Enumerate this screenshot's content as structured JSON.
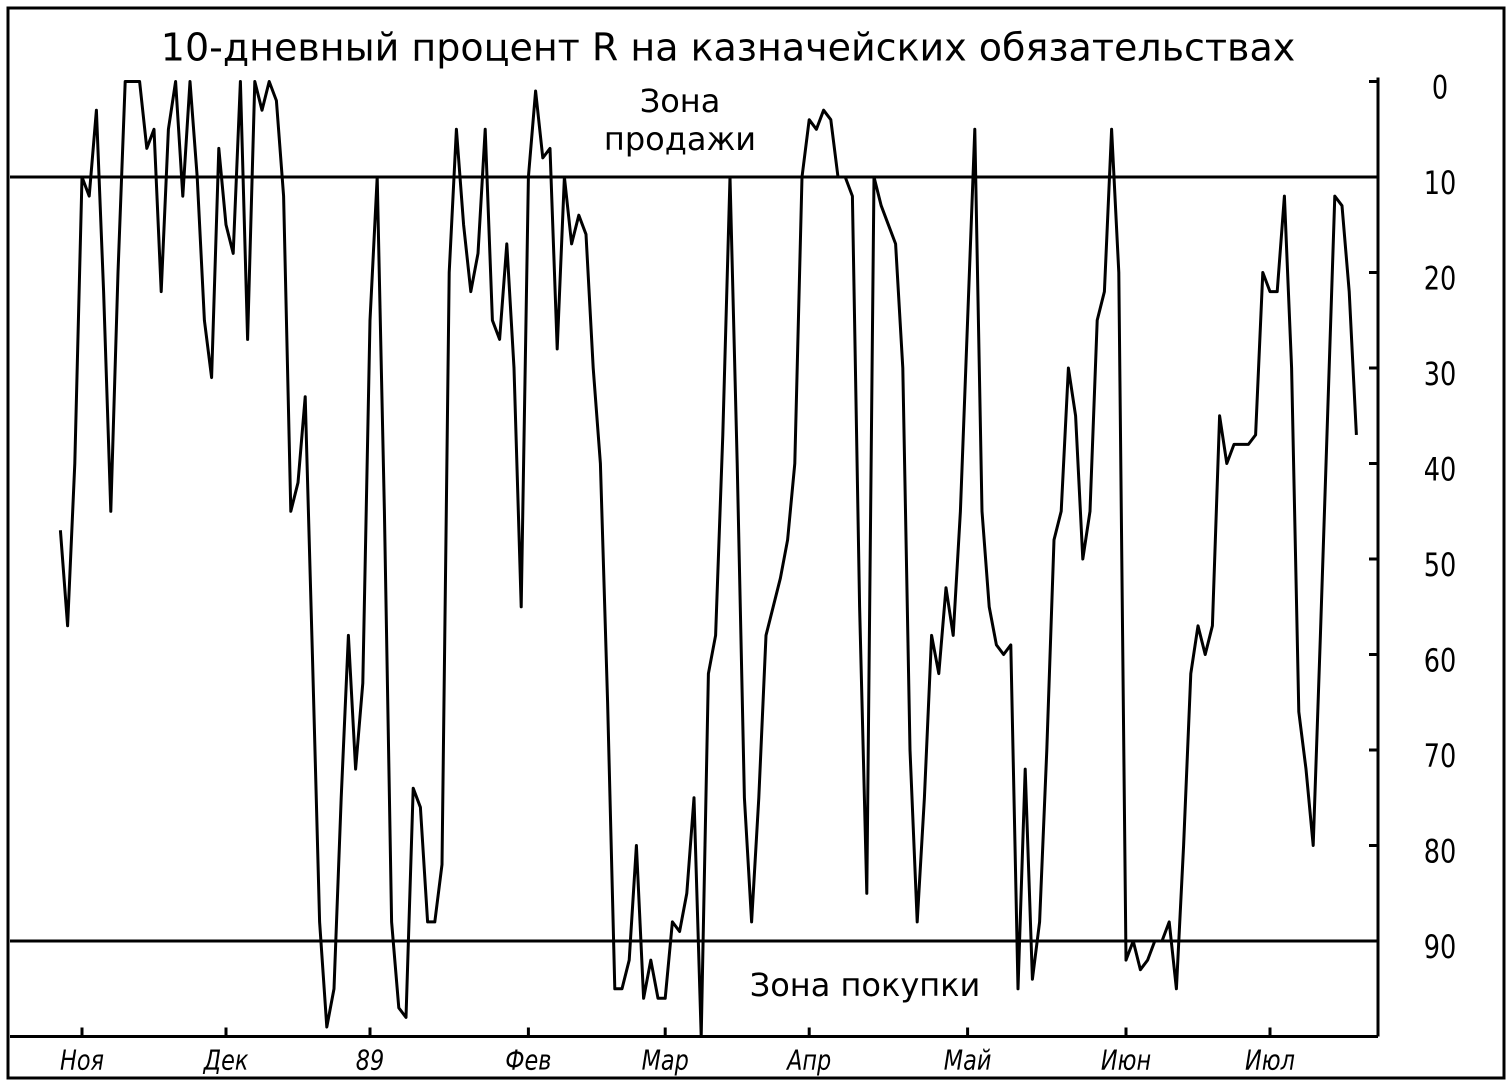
{
  "chart_data": {
    "type": "line",
    "title": "10-дневный процент R на казначейских обязательствах",
    "annotations": [
      "Зона продажи",
      "Зона покупки"
    ],
    "color": "#000000",
    "y_inverted": true,
    "hlines": [
      10,
      90
    ],
    "xlim": [
      0,
      190
    ],
    "ylim": [
      0,
      100
    ],
    "yticks": [
      0,
      10,
      20,
      30,
      40,
      50,
      60,
      70,
      80,
      90
    ],
    "xticks": [
      {
        "value": 10,
        "label": "Ноя"
      },
      {
        "value": 30,
        "label": "Дек"
      },
      {
        "value": 50,
        "label": "89"
      },
      {
        "value": 72,
        "label": "Фев"
      },
      {
        "value": 91,
        "label": "Мар"
      },
      {
        "value": 111,
        "label": "Апр"
      },
      {
        "value": 133,
        "label": "Май"
      },
      {
        "value": 155,
        "label": "Июн"
      },
      {
        "value": 175,
        "label": "Июл"
      }
    ],
    "x": [
      7,
      8,
      9,
      10,
      11,
      12,
      13,
      14,
      15,
      16,
      17,
      18,
      19,
      20,
      21,
      22,
      23,
      24,
      25,
      26,
      27,
      28,
      29,
      30,
      31,
      32,
      33,
      34,
      35,
      36,
      37,
      38,
      39,
      40,
      41,
      42,
      43,
      44,
      45,
      46,
      47,
      48,
      49,
      50,
      51,
      52,
      53,
      54,
      55,
      56,
      57,
      58,
      59,
      60,
      61,
      62,
      63,
      64,
      65,
      66,
      67,
      68,
      69,
      70,
      71,
      72,
      73,
      74,
      75,
      76,
      77,
      78,
      79,
      80,
      81,
      82,
      83,
      84,
      85,
      86,
      87,
      88,
      89,
      90,
      91,
      92,
      93,
      94,
      95,
      96,
      97,
      98,
      99,
      100,
      101,
      102,
      103,
      104,
      105,
      106,
      107,
      108,
      109,
      110,
      111,
      112,
      113,
      114,
      115,
      116,
      117,
      118,
      119,
      120,
      121,
      122,
      123,
      124,
      125,
      126,
      127,
      128,
      129,
      130,
      131,
      132,
      133,
      134,
      135,
      136,
      137,
      138,
      139,
      140,
      141,
      142,
      143,
      144,
      145,
      146,
      147,
      148,
      149,
      150,
      151,
      152,
      153,
      154,
      155,
      156,
      157,
      158,
      159,
      160,
      161,
      162,
      163,
      164,
      165,
      166,
      167,
      168,
      169,
      170,
      171,
      172,
      173,
      174,
      175,
      176,
      177,
      178,
      179,
      180,
      181,
      182,
      183,
      184,
      185,
      186,
      187
    ],
    "values": [
      47,
      57,
      40,
      10,
      12,
      3,
      22,
      45,
      20,
      0,
      0,
      0,
      7,
      5,
      22,
      5,
      0,
      12,
      0,
      10,
      25,
      31,
      7,
      15,
      18,
      0,
      27,
      0,
      3,
      0,
      2,
      12,
      45,
      42,
      33,
      60,
      88,
      99,
      95,
      75,
      58,
      72,
      63,
      25,
      10,
      45,
      88,
      97,
      98,
      74,
      76,
      88,
      88,
      82,
      20,
      5,
      15,
      22,
      18,
      5,
      25,
      27,
      17,
      30,
      55,
      10,
      1,
      8,
      7,
      28,
      10,
      17,
      14,
      16,
      30,
      40,
      65,
      95,
      95,
      92,
      80,
      96,
      92,
      96,
      96,
      88,
      89,
      85,
      75,
      100,
      62,
      58,
      37,
      10,
      40,
      75,
      88,
      75,
      58,
      55,
      52,
      48,
      40,
      10,
      4,
      5,
      3,
      4,
      10,
      10,
      12,
      55,
      85,
      10,
      13,
      15,
      17,
      30,
      70,
      88,
      75,
      58,
      62,
      53,
      58,
      45,
      25,
      5,
      45,
      55,
      59,
      60,
      59,
      95,
      72,
      94,
      88,
      70,
      48,
      45,
      30,
      35,
      50,
      45,
      25,
      22,
      5,
      20,
      92,
      90,
      93,
      92,
      90,
      90,
      88,
      95,
      80,
      62,
      57,
      60,
      57,
      35,
      40,
      38,
      38,
      38,
      37,
      20,
      22,
      22,
      12,
      30,
      66,
      72,
      80,
      58,
      35,
      12,
      13,
      22,
      37
    ]
  }
}
